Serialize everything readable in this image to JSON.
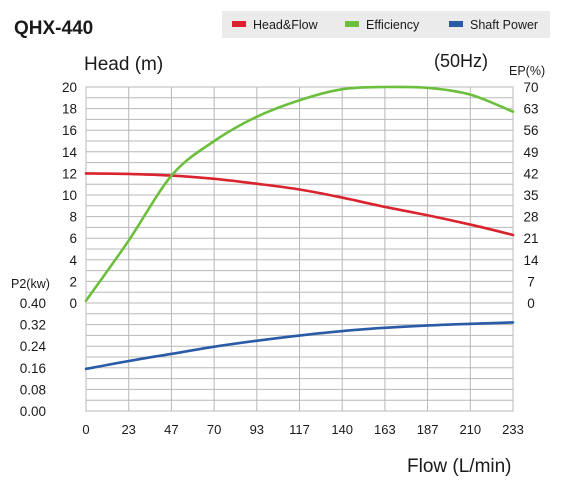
{
  "chart_data": {
    "type": "line",
    "title": "QHX-440",
    "frequency_label": "(50Hz)",
    "legend_position": "top-right",
    "legend": [
      {
        "key": "head",
        "label": "Head&Flow",
        "color": "#d9232e"
      },
      {
        "key": "efficiency",
        "label": "Efficiency",
        "color": "#6cbf3d"
      },
      {
        "key": "power",
        "label": "Shaft Power",
        "color": "#2a5ba6"
      }
    ],
    "grid": true,
    "xlabel": "Flow (L/min)",
    "x_ticks": [
      "0",
      "23",
      "47",
      "70",
      "93",
      "117",
      "140",
      "163",
      "187",
      "210",
      "233"
    ],
    "xlim": [
      0,
      233
    ],
    "head_axis": {
      "label": "Head (m)",
      "ticks": [
        "0",
        "2",
        "4",
        "6",
        "8",
        "10",
        "12",
        "14",
        "16",
        "18",
        "20"
      ],
      "ylim": [
        0,
        20
      ]
    },
    "efficiency_axis": {
      "label": "EP(%)",
      "ticks": [
        "0",
        "7",
        "14",
        "21",
        "28",
        "35",
        "42",
        "49",
        "56",
        "63",
        "70"
      ],
      "ylim": [
        0,
        70
      ]
    },
    "power_axis": {
      "label": "P2(kw)",
      "ticks": [
        "0.00",
        "0.08",
        "0.16",
        "0.24",
        "0.32",
        "0.40"
      ],
      "ylim": [
        0,
        0.4
      ]
    },
    "series": [
      {
        "name": "Head&Flow",
        "axis": "head",
        "x": [
          0,
          23,
          47,
          70,
          93,
          117,
          140,
          163,
          187,
          210,
          233
        ],
        "values": [
          12.0,
          11.95,
          11.8,
          11.5,
          11.05,
          10.5,
          9.75,
          8.9,
          8.1,
          7.25,
          6.3
        ]
      },
      {
        "name": "Efficiency",
        "axis": "efficiency",
        "x": [
          0,
          23,
          47,
          70,
          93,
          117,
          140,
          163,
          187,
          210,
          233
        ],
        "values": [
          0.7,
          20.0,
          41.5,
          52.5,
          60.3,
          65.8,
          69.3,
          70.0,
          69.7,
          67.5,
          62.0
        ]
      },
      {
        "name": "Shaft Power",
        "axis": "power",
        "x": [
          0,
          23,
          47,
          70,
          93,
          117,
          140,
          163,
          187,
          210,
          233
        ],
        "values": [
          0.156,
          0.185,
          0.212,
          0.238,
          0.26,
          0.28,
          0.296,
          0.308,
          0.317,
          0.323,
          0.328
        ]
      }
    ]
  }
}
